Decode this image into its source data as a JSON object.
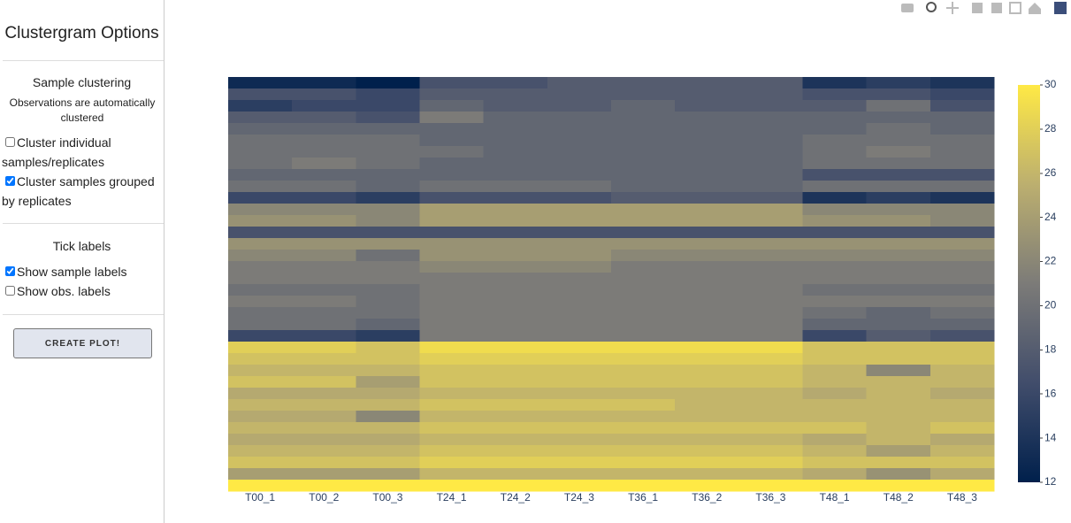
{
  "sidebar": {
    "title": "Clustergram Options",
    "sample_section": {
      "heading": "Sample clustering",
      "note": "Observations are automatically clustered",
      "options": [
        {
          "label": "Cluster individual samples/replicates",
          "checked": false
        },
        {
          "label": "Cluster samples grouped by replicates",
          "checked": true
        }
      ]
    },
    "tick_section": {
      "heading": "Tick labels",
      "options": [
        {
          "label": "Show sample labels",
          "checked": true
        },
        {
          "label": "Show obs. labels",
          "checked": false
        }
      ]
    },
    "button": "CREATE PLOT!"
  },
  "chart_data": {
    "type": "heatmap",
    "x": [
      "T00_1",
      "T00_2",
      "T00_3",
      "T24_1",
      "T24_2",
      "T24_3",
      "T36_1",
      "T36_2",
      "T36_3",
      "T48_1",
      "T48_2",
      "T48_3"
    ],
    "z": [
      [
        13,
        13,
        12,
        17,
        17,
        18,
        18,
        18,
        18,
        14,
        15,
        14
      ],
      [
        17,
        17,
        16,
        18,
        18,
        18,
        18,
        18,
        18,
        17,
        17,
        16
      ],
      [
        15,
        16,
        16,
        19,
        18,
        18,
        19,
        18,
        18,
        18,
        20,
        17
      ],
      [
        18,
        18,
        17,
        21,
        19,
        19,
        19,
        19,
        19,
        19,
        19,
        19
      ],
      [
        19,
        19,
        19,
        19,
        19,
        19,
        19,
        19,
        19,
        19,
        20,
        19
      ],
      [
        20,
        20,
        20,
        19,
        19,
        19,
        19,
        19,
        19,
        20,
        20,
        20
      ],
      [
        20,
        20,
        20,
        20,
        19,
        19,
        19,
        19,
        19,
        20,
        21,
        20
      ],
      [
        20,
        21,
        20,
        19,
        19,
        19,
        19,
        19,
        19,
        20,
        20,
        20
      ],
      [
        19,
        19,
        19,
        19,
        19,
        19,
        19,
        19,
        19,
        17,
        17,
        17
      ],
      [
        20,
        20,
        19,
        20,
        20,
        20,
        19,
        19,
        19,
        20,
        20,
        20
      ],
      [
        16,
        16,
        15,
        17,
        17,
        17,
        18,
        18,
        18,
        14,
        15,
        14
      ],
      [
        22,
        22,
        22,
        24,
        24,
        24,
        24,
        24,
        24,
        22,
        22,
        22
      ],
      [
        23,
        23,
        22,
        24,
        24,
        24,
        24,
        24,
        24,
        23,
        23,
        22
      ],
      [
        17,
        17,
        17,
        17,
        17,
        17,
        17,
        17,
        17,
        17,
        17,
        17
      ],
      [
        23,
        23,
        23,
        23,
        23,
        23,
        23,
        23,
        23,
        23,
        23,
        23
      ],
      [
        22,
        22,
        20,
        23,
        23,
        23,
        22,
        22,
        22,
        22,
        22,
        22
      ],
      [
        21,
        21,
        21,
        22,
        22,
        22,
        21,
        21,
        21,
        21,
        21,
        21
      ],
      [
        21,
        21,
        21,
        21,
        21,
        21,
        21,
        21,
        21,
        21,
        21,
        21
      ],
      [
        20,
        20,
        20,
        21,
        21,
        21,
        21,
        21,
        21,
        20,
        20,
        20
      ],
      [
        21,
        21,
        20,
        21,
        21,
        21,
        21,
        21,
        21,
        21,
        21,
        21
      ],
      [
        20,
        20,
        20,
        21,
        21,
        21,
        21,
        21,
        21,
        20,
        19,
        20
      ],
      [
        20,
        20,
        19,
        21,
        21,
        21,
        21,
        21,
        21,
        19,
        19,
        19
      ],
      [
        16,
        16,
        15,
        21,
        21,
        21,
        21,
        21,
        21,
        16,
        18,
        17
      ],
      [
        28,
        28,
        27,
        29,
        29,
        29,
        29,
        29,
        29,
        27,
        27,
        27
      ],
      [
        27,
        27,
        27,
        28,
        28,
        28,
        28,
        28,
        28,
        27,
        27,
        27
      ],
      [
        26,
        26,
        26,
        27,
        27,
        27,
        27,
        27,
        27,
        26,
        22,
        26
      ],
      [
        27,
        27,
        24,
        27,
        27,
        27,
        27,
        27,
        27,
        26,
        26,
        26
      ],
      [
        25,
        25,
        25,
        26,
        26,
        26,
        26,
        26,
        26,
        25,
        26,
        25
      ],
      [
        26,
        26,
        26,
        27,
        27,
        27,
        27,
        26,
        26,
        26,
        26,
        26
      ],
      [
        25,
        25,
        22,
        26,
        26,
        26,
        26,
        26,
        26,
        26,
        26,
        26
      ],
      [
        26,
        26,
        26,
        27,
        27,
        27,
        27,
        27,
        27,
        27,
        26,
        27
      ],
      [
        25,
        25,
        25,
        26,
        26,
        26,
        26,
        26,
        26,
        25,
        26,
        25
      ],
      [
        26,
        26,
        26,
        27,
        27,
        27,
        27,
        27,
        27,
        26,
        24,
        26
      ],
      [
        27,
        27,
        27,
        28,
        28,
        28,
        28,
        28,
        28,
        27,
        27,
        27
      ],
      [
        24,
        24,
        24,
        26,
        26,
        26,
        26,
        26,
        26,
        25,
        23,
        25
      ],
      [
        30,
        30,
        30,
        30,
        30,
        30,
        30,
        30,
        30,
        30,
        30,
        30
      ]
    ],
    "zlim": [
      12,
      30
    ],
    "colorbar_ticks": [
      12,
      14,
      16,
      18,
      20,
      22,
      24,
      26,
      28,
      30
    ],
    "colorscale": [
      [
        0,
        "#00204c"
      ],
      [
        0.25,
        "#414d6b"
      ],
      [
        0.5,
        "#7c7b78"
      ],
      [
        0.75,
        "#bcaf6f"
      ],
      [
        1,
        "#ffe945"
      ]
    ]
  }
}
